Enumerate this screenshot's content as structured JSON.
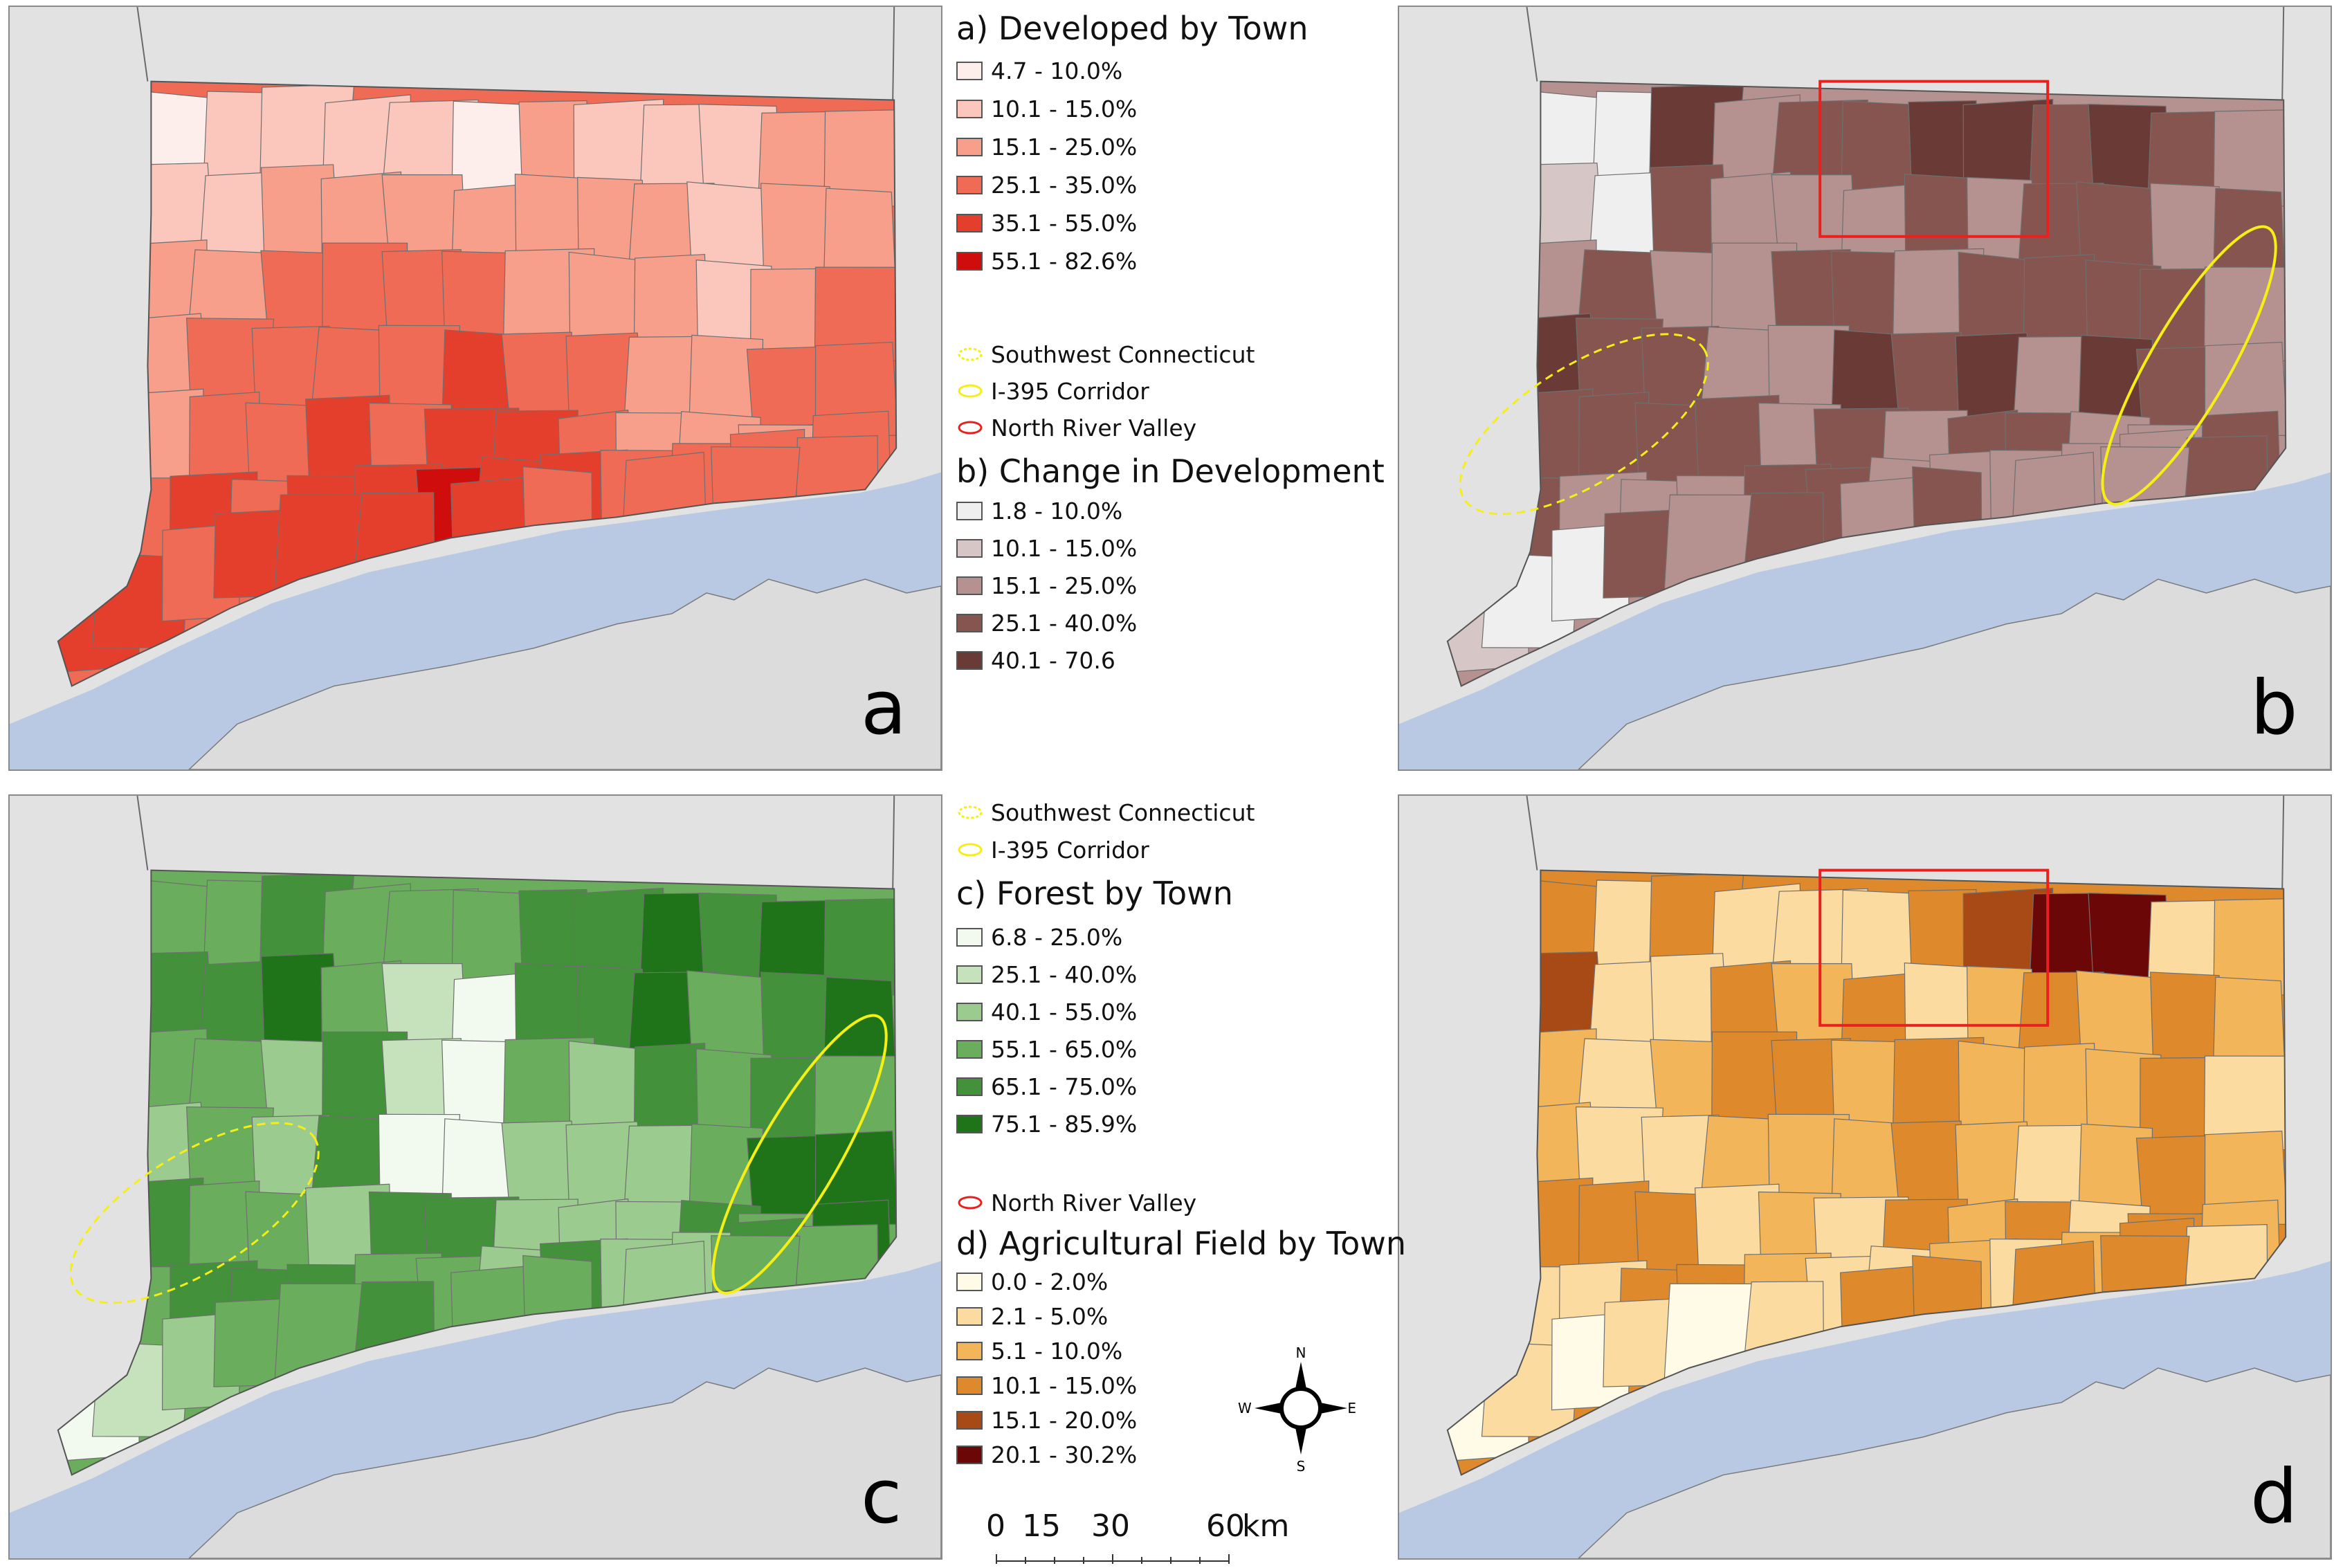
{
  "panels": {
    "a": {
      "letter": "a"
    },
    "b": {
      "letter": "b"
    },
    "c": {
      "letter": "c"
    },
    "d": {
      "letter": "d"
    }
  },
  "colors": {
    "background": "#e2e2e2",
    "water": "#b9c9e3",
    "region_ellipse": "#f5ef14",
    "region_box": "#e8211f"
  },
  "legend_a": {
    "title": "a) Developed by Town",
    "classes": [
      {
        "label": "4.7 - 10.0%",
        "color": "#fdeeec"
      },
      {
        "label": "10.1 - 15.0%",
        "color": "#fbc7bc"
      },
      {
        "label": "15.1 - 25.0%",
        "color": "#f79f8b"
      },
      {
        "label": "25.1 - 35.0%",
        "color": "#ef6b55"
      },
      {
        "label": "35.1 - 55.0%",
        "color": "#e43f2c"
      },
      {
        "label": "55.1 - 82.6%",
        "color": "#cf0d0d"
      }
    ]
  },
  "regions_1": [
    {
      "label": "Southwest Connecticut",
      "symbol": "dashed-yellow"
    },
    {
      "label": "I-395 Corridor",
      "symbol": "solid-yellow"
    },
    {
      "label": "North River Valley",
      "symbol": "red"
    }
  ],
  "legend_b": {
    "title": "b) Change in Development",
    "classes": [
      {
        "label": "1.8 - 10.0%",
        "color": "#efefef"
      },
      {
        "label": "10.1 - 15.0%",
        "color": "#d6c6c6"
      },
      {
        "label": "15.1 - 25.0%",
        "color": "#b5918f"
      },
      {
        "label": "25.1 - 40.0%",
        "color": "#86554f"
      },
      {
        "label": "40.1 - 70.6",
        "color": "#6a3a36"
      }
    ]
  },
  "regions_2": [
    {
      "label": "Southwest Connecticut",
      "symbol": "dashed-yellow"
    },
    {
      "label": "I-395 Corridor",
      "symbol": "solid-yellow"
    }
  ],
  "legend_c": {
    "title": "c) Forest by Town",
    "classes": [
      {
        "label": "6.8 - 25.0%",
        "color": "#f2faf0"
      },
      {
        "label": "25.1 - 40.0%",
        "color": "#c6e2bd"
      },
      {
        "label": "40.1 - 55.0%",
        "color": "#9ccb8f"
      },
      {
        "label": "55.1 - 65.0%",
        "color": "#6aad5d"
      },
      {
        "label": "65.1 - 75.0%",
        "color": "#43913a"
      },
      {
        "label": "75.1 - 85.9%",
        "color": "#1f7419"
      }
    ]
  },
  "regions_3": [
    {
      "label": "North River Valley",
      "symbol": "red"
    }
  ],
  "legend_d": {
    "title": "d) Agricultural Field by Town",
    "classes": [
      {
        "label": "0.0 - 2.0%",
        "color": "#fffbe6"
      },
      {
        "label": "2.1 - 5.0%",
        "color": "#fbdba0"
      },
      {
        "label": "5.1 - 10.0%",
        "color": "#f2b559"
      },
      {
        "label": "10.1 - 15.0%",
        "color": "#de8a2c"
      },
      {
        "label": "15.1 - 20.0%",
        "color": "#a84a16"
      },
      {
        "label": "20.1 - 30.2%",
        "color": "#6b0707"
      }
    ]
  },
  "north_arrow": {
    "n": "N",
    "s": "S",
    "e": "E",
    "w": "W"
  },
  "scale_bar": {
    "ticks": [
      "0",
      "15",
      "30",
      "60"
    ],
    "unit": "km",
    "values_km": [
      0,
      15,
      30,
      60
    ]
  }
}
